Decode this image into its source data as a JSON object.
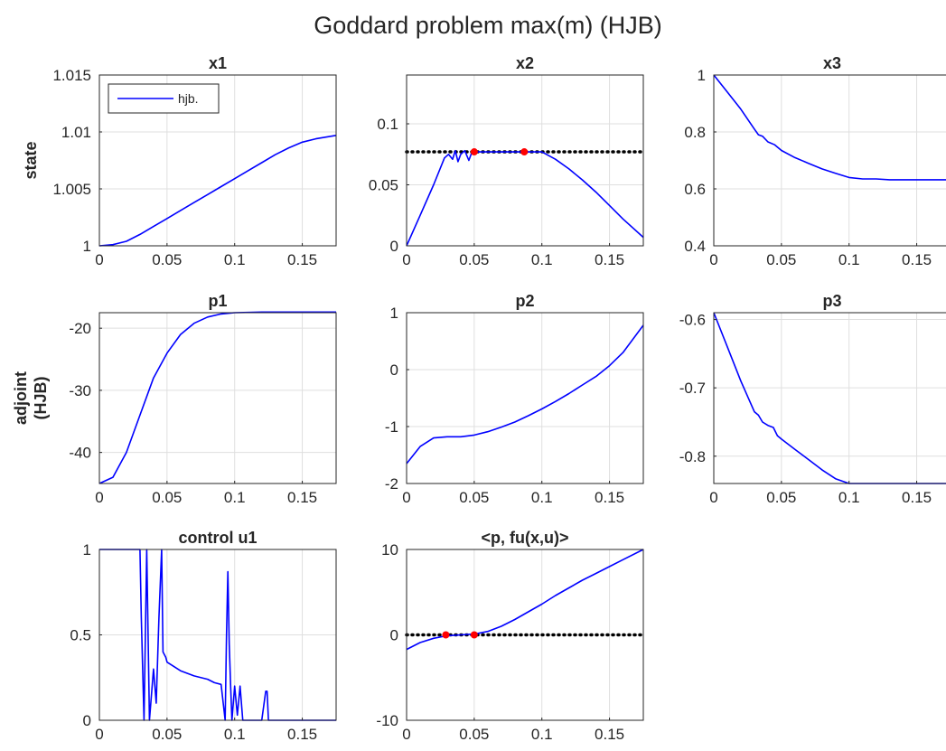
{
  "figure_title": "Goddard problem max(m) (HJB)",
  "row_labels": [
    [
      "state"
    ],
    [
      "adjoint",
      "(HJB)"
    ],
    []
  ],
  "colors": {
    "series": "#0000ff",
    "reference": "#000000",
    "markers": "#ff0000",
    "grid": "#dfdfdf",
    "axes": "#262626"
  },
  "chart_data": [
    {
      "type": "line",
      "title": "x1",
      "xlabel": "",
      "ylabel": "",
      "xlim": [
        0,
        0.175
      ],
      "ylim": [
        1,
        1.015
      ],
      "xticks": [
        0,
        0.05,
        0.1,
        0.15
      ],
      "xtick_labels": [
        "0",
        "0.05",
        "0.1",
        "0.15"
      ],
      "yticks": [
        1,
        1.005,
        1.01,
        1.015
      ],
      "ytick_labels": [
        "1",
        "1.005",
        "1.01",
        "1.015"
      ],
      "grid": true,
      "legend": {
        "entries": [
          "hjb."
        ],
        "location": "top-left"
      },
      "series": [
        {
          "name": "hjb.",
          "x": [
            0,
            0.01,
            0.02,
            0.03,
            0.04,
            0.05,
            0.06,
            0.07,
            0.08,
            0.09,
            0.1,
            0.11,
            0.12,
            0.13,
            0.14,
            0.15,
            0.16,
            0.175
          ],
          "y": [
            1.0,
            1.0001,
            1.0004,
            1.001,
            1.0017,
            1.0024,
            1.0031,
            1.0038,
            1.0045,
            1.0052,
            1.0059,
            1.0066,
            1.0073,
            1.008,
            1.0086,
            1.0091,
            1.0094,
            1.0097
          ]
        }
      ],
      "reference_lines": [],
      "markers": []
    },
    {
      "type": "line",
      "title": "x2",
      "xlabel": "",
      "ylabel": "",
      "xlim": [
        0,
        0.175
      ],
      "ylim": [
        0,
        0.14
      ],
      "xticks": [
        0,
        0.05,
        0.1,
        0.15
      ],
      "xtick_labels": [
        "0",
        "0.05",
        "0.1",
        "0.15"
      ],
      "yticks": [
        0,
        0.05,
        0.1
      ],
      "ytick_labels": [
        "0",
        "0.05",
        "0.1"
      ],
      "grid": true,
      "series": [
        {
          "x": [
            0,
            0.01,
            0.02,
            0.028,
            0.031,
            0.034,
            0.036,
            0.038,
            0.04,
            0.043,
            0.046,
            0.048,
            0.05,
            0.06,
            0.07,
            0.08,
            0.09,
            0.1,
            0.11,
            0.12,
            0.13,
            0.14,
            0.15,
            0.16,
            0.175
          ],
          "y": [
            0,
            0.025,
            0.05,
            0.072,
            0.075,
            0.071,
            0.078,
            0.069,
            0.075,
            0.078,
            0.07,
            0.076,
            0.077,
            0.077,
            0.077,
            0.077,
            0.077,
            0.077,
            0.071,
            0.063,
            0.054,
            0.044,
            0.033,
            0.022,
            0.007
          ]
        }
      ],
      "reference_lines": [
        {
          "axis": "y",
          "value": 0.077,
          "style": "dotted"
        }
      ],
      "markers": [
        {
          "x": 0.05,
          "y": 0.077
        },
        {
          "x": 0.087,
          "y": 0.077
        }
      ]
    },
    {
      "type": "line",
      "title": "x3",
      "xlabel": "",
      "ylabel": "",
      "xlim": [
        0,
        0.175
      ],
      "ylim": [
        0.4,
        1
      ],
      "xticks": [
        0,
        0.05,
        0.1,
        0.15
      ],
      "xtick_labels": [
        "0",
        "0.05",
        "0.1",
        "0.15"
      ],
      "yticks": [
        0.4,
        0.6,
        0.8,
        1
      ],
      "ytick_labels": [
        "0.4",
        "0.6",
        "0.8",
        "1"
      ],
      "grid": true,
      "series": [
        {
          "x": [
            0,
            0.01,
            0.02,
            0.03,
            0.033,
            0.036,
            0.04,
            0.045,
            0.05,
            0.06,
            0.07,
            0.08,
            0.09,
            0.1,
            0.11,
            0.12,
            0.13,
            0.14,
            0.15,
            0.16,
            0.175
          ],
          "y": [
            1.0,
            0.94,
            0.88,
            0.81,
            0.79,
            0.785,
            0.765,
            0.755,
            0.735,
            0.71,
            0.69,
            0.67,
            0.655,
            0.64,
            0.635,
            0.635,
            0.632,
            0.632,
            0.632,
            0.632,
            0.632
          ]
        }
      ],
      "reference_lines": [],
      "markers": []
    },
    {
      "type": "line",
      "title": "p1",
      "xlabel": "",
      "ylabel": "",
      "xlim": [
        0,
        0.175
      ],
      "ylim": [
        -45,
        -17.5
      ],
      "xticks": [
        0,
        0.05,
        0.1,
        0.15
      ],
      "xtick_labels": [
        "0",
        "0.05",
        "0.1",
        "0.15"
      ],
      "yticks": [
        -40,
        -30,
        -20
      ],
      "ytick_labels": [
        "-40",
        "-30",
        "-20"
      ],
      "grid": true,
      "series": [
        {
          "x": [
            0,
            0.01,
            0.02,
            0.03,
            0.04,
            0.05,
            0.06,
            0.07,
            0.08,
            0.09,
            0.1,
            0.12,
            0.14,
            0.175
          ],
          "y": [
            -45,
            -44,
            -40,
            -34,
            -28,
            -24,
            -21,
            -19.2,
            -18.2,
            -17.7,
            -17.5,
            -17.4,
            -17.4,
            -17.4
          ]
        }
      ],
      "reference_lines": [],
      "markers": []
    },
    {
      "type": "line",
      "title": "p2",
      "xlabel": "",
      "ylabel": "",
      "xlim": [
        0,
        0.175
      ],
      "ylim": [
        -2,
        1
      ],
      "xticks": [
        0,
        0.05,
        0.1,
        0.15
      ],
      "xtick_labels": [
        "0",
        "0.05",
        "0.1",
        "0.15"
      ],
      "yticks": [
        -2,
        -1,
        0,
        1
      ],
      "ytick_labels": [
        "-2",
        "-1",
        "0",
        "1"
      ],
      "grid": true,
      "series": [
        {
          "x": [
            0,
            0.01,
            0.02,
            0.03,
            0.04,
            0.05,
            0.06,
            0.07,
            0.08,
            0.09,
            0.1,
            0.11,
            0.12,
            0.13,
            0.14,
            0.15,
            0.16,
            0.175
          ],
          "y": [
            -1.65,
            -1.35,
            -1.2,
            -1.18,
            -1.18,
            -1.15,
            -1.09,
            -1.01,
            -0.92,
            -0.81,
            -0.69,
            -0.56,
            -0.42,
            -0.27,
            -0.12,
            0.07,
            0.3,
            0.78
          ]
        }
      ],
      "reference_lines": [],
      "markers": []
    },
    {
      "type": "line",
      "title": "p3",
      "xlabel": "",
      "ylabel": "",
      "xlim": [
        0,
        0.175
      ],
      "ylim": [
        -0.84,
        -0.59
      ],
      "xticks": [
        0,
        0.05,
        0.1,
        0.15
      ],
      "xtick_labels": [
        "0",
        "0.05",
        "0.1",
        "0.15"
      ],
      "yticks": [
        -0.8,
        -0.7,
        -0.6
      ],
      "ytick_labels": [
        "-0.8",
        "-0.7",
        "-0.6"
      ],
      "grid": true,
      "series": [
        {
          "x": [
            0,
            0.01,
            0.02,
            0.03,
            0.033,
            0.036,
            0.04,
            0.044,
            0.047,
            0.05,
            0.06,
            0.07,
            0.08,
            0.09,
            0.1,
            0.11,
            0.12,
            0.14,
            0.16,
            0.175
          ],
          "y": [
            -0.59,
            -0.64,
            -0.69,
            -0.735,
            -0.74,
            -0.75,
            -0.755,
            -0.758,
            -0.77,
            -0.775,
            -0.79,
            -0.805,
            -0.82,
            -0.833,
            -0.84,
            -0.84,
            -0.84,
            -0.84,
            -0.84,
            -0.84
          ]
        }
      ],
      "reference_lines": [],
      "markers": []
    },
    {
      "type": "line",
      "title": "control u1",
      "xlabel": "",
      "ylabel": "",
      "xlim": [
        0,
        0.175
      ],
      "ylim": [
        0,
        1
      ],
      "xticks": [
        0,
        0.05,
        0.1,
        0.15
      ],
      "xtick_labels": [
        "0",
        "0.05",
        "0.1",
        "0.15"
      ],
      "yticks": [
        0,
        0.5,
        1
      ],
      "ytick_labels": [
        "0",
        "0.5",
        "1"
      ],
      "grid": true,
      "series": [
        {
          "x": [
            0,
            0.03,
            0.031,
            0.033,
            0.035,
            0.037,
            0.04,
            0.042,
            0.044,
            0.046,
            0.047,
            0.049,
            0.05,
            0.06,
            0.07,
            0.08,
            0.085,
            0.09,
            0.093,
            0.094,
            0.095,
            0.096,
            0.097,
            0.098,
            0.1,
            0.102,
            0.104,
            0.106,
            0.12,
            0.123,
            0.124,
            0.125,
            0.175
          ],
          "y": [
            1,
            1,
            0.6,
            0,
            1,
            0,
            0.3,
            0.1,
            0.6,
            1,
            0.4,
            0.37,
            0.34,
            0.29,
            0.26,
            0.24,
            0.22,
            0.21,
            0,
            0.5,
            0.87,
            0.45,
            0.21,
            0,
            0.2,
            0.03,
            0.2,
            0,
            0,
            0.17,
            0.17,
            0,
            0
          ]
        }
      ],
      "reference_lines": [],
      "markers": []
    },
    {
      "type": "line",
      "title": "<p, fu(x,u)>",
      "xlabel": "",
      "ylabel": "",
      "xlim": [
        0,
        0.175
      ],
      "ylim": [
        -10,
        10
      ],
      "xticks": [
        0,
        0.05,
        0.1,
        0.15
      ],
      "xtick_labels": [
        "0",
        "0.05",
        "0.1",
        "0.15"
      ],
      "yticks": [
        -10,
        0,
        10
      ],
      "ytick_labels": [
        "-10",
        "0",
        "10"
      ],
      "grid": true,
      "series": [
        {
          "x": [
            0,
            0.01,
            0.02,
            0.03,
            0.04,
            0.05,
            0.06,
            0.07,
            0.08,
            0.09,
            0.1,
            0.11,
            0.12,
            0.13,
            0.14,
            0.15,
            0.16,
            0.175
          ],
          "y": [
            -1.7,
            -0.9,
            -0.4,
            -0.1,
            0,
            0.1,
            0.4,
            1.0,
            1.8,
            2.7,
            3.6,
            4.6,
            5.5,
            6.4,
            7.2,
            8.0,
            8.8,
            10
          ]
        }
      ],
      "reference_lines": [
        {
          "axis": "y",
          "value": 0,
          "style": "dotted"
        }
      ],
      "markers": [
        {
          "x": 0.029,
          "y": 0
        },
        {
          "x": 0.05,
          "y": 0
        }
      ]
    }
  ]
}
